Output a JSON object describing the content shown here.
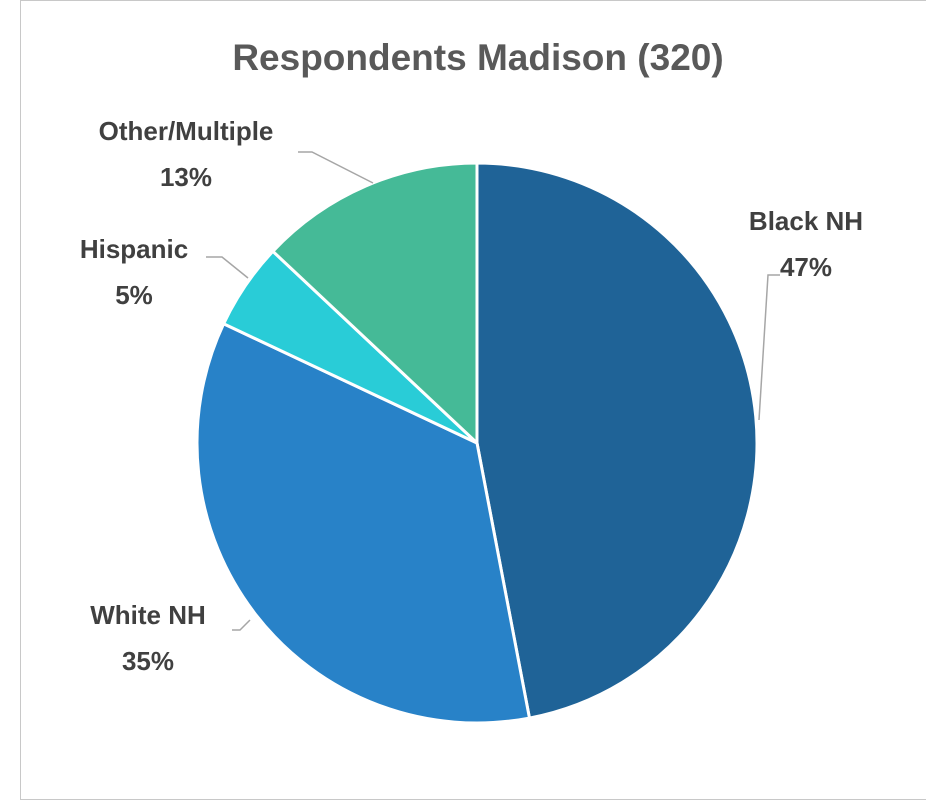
{
  "chart_data": {
    "type": "pie",
    "title": "Respondents Madison (320)",
    "start_angle_deg": 0,
    "direction": "clockwise",
    "slices": [
      {
        "label": "Black NH",
        "value": 47,
        "display": "47%",
        "color": "#1F6397"
      },
      {
        "label": "White NH",
        "value": 35,
        "display": "35%",
        "color": "#2882C8"
      },
      {
        "label": "Hispanic",
        "value": 5,
        "display": "5%",
        "color": "#29CCD7"
      },
      {
        "label": "Other/Multiple",
        "value": 13,
        "display": "13%",
        "color": "#45BA97"
      }
    ]
  }
}
